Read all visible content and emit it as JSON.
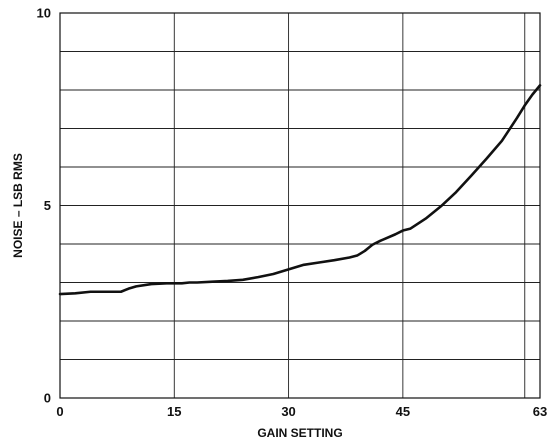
{
  "chart_data": {
    "type": "line",
    "title": "",
    "xlabel": "GAIN SETTING",
    "ylabel": "NOISE – LSB RMS",
    "xlim": [
      0,
      63
    ],
    "ylim": [
      0,
      10
    ],
    "x_ticks": [
      0,
      15,
      30,
      45,
      63
    ],
    "y_ticks": [
      0,
      5,
      10
    ],
    "x_gridlines": [
      15,
      30,
      45,
      61
    ],
    "y_gridlines": [
      1,
      2,
      3,
      4,
      5,
      6,
      7,
      8,
      9
    ],
    "grid": true,
    "legend": "none",
    "line_color": "#111111",
    "series": [
      {
        "name": "",
        "x": [
          0,
          2,
          4,
          6,
          8,
          9,
          10,
          12,
          14,
          16,
          17,
          18,
          20,
          22,
          24,
          26,
          28,
          30,
          32,
          34,
          36,
          38,
          39,
          40,
          41,
          42,
          44,
          45,
          46,
          48,
          50,
          52,
          54,
          56,
          58,
          60,
          61,
          62,
          63
        ],
        "values": [
          2.7,
          2.72,
          2.76,
          2.76,
          2.76,
          2.84,
          2.9,
          2.96,
          2.98,
          2.98,
          3.0,
          3.0,
          3.02,
          3.04,
          3.07,
          3.14,
          3.22,
          3.34,
          3.46,
          3.52,
          3.58,
          3.65,
          3.7,
          3.82,
          3.98,
          4.08,
          4.25,
          4.35,
          4.4,
          4.66,
          4.98,
          5.35,
          5.78,
          6.22,
          6.68,
          7.28,
          7.6,
          7.88,
          8.12
        ]
      }
    ]
  }
}
